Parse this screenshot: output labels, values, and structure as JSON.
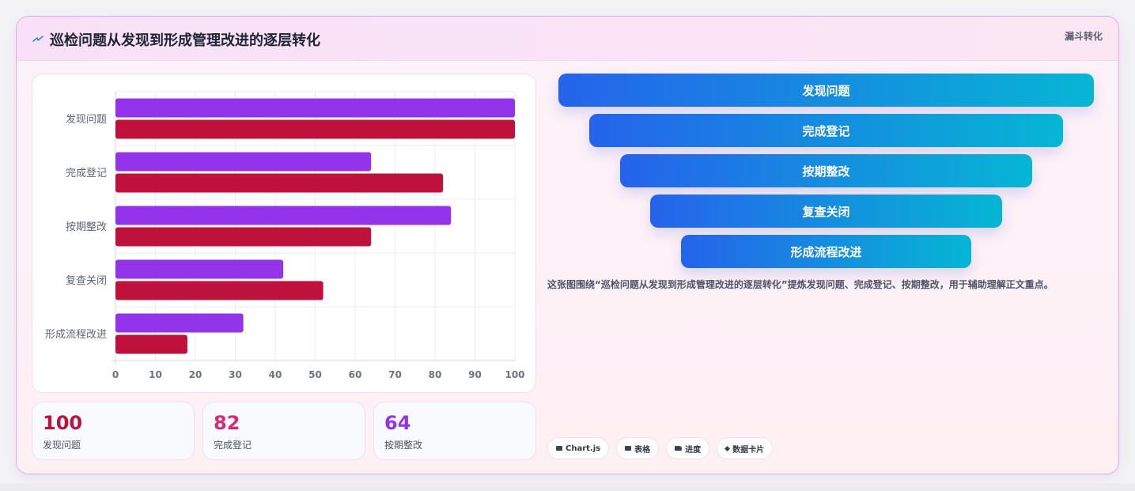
{
  "header": {
    "title": "巡检问题从发现到形成管理改进的逐层转化",
    "tag": "漏斗转化",
    "icon": "bolt-icon"
  },
  "chart_data": {
    "type": "bar",
    "orientation": "horizontal",
    "categories": [
      "发现问题",
      "完成登记",
      "按期整改",
      "复查关闭",
      "形成流程改进"
    ],
    "series": [
      {
        "color": "#9333ea",
        "values": [
          100,
          64,
          84,
          42,
          32
        ]
      },
      {
        "color": "#be123c",
        "values": [
          100,
          82,
          64,
          52,
          18
        ]
      }
    ],
    "xlim": [
      0,
      100
    ],
    "xticks": [
      0,
      10,
      20,
      30,
      40,
      50,
      60,
      70,
      80,
      90,
      100
    ],
    "grid": true,
    "legend": "none"
  },
  "stats": [
    {
      "value": "100",
      "label": "发现问题",
      "color": "#be123c"
    },
    {
      "value": "82",
      "label": "完成登记",
      "color": "#db2777"
    },
    {
      "value": "64",
      "label": "按期整改",
      "color": "#9333ea"
    }
  ],
  "funnel": {
    "stages": [
      "发现问题",
      "完成登记",
      "按期整改",
      "复查关闭",
      "形成流程改进"
    ]
  },
  "description": "这张图围绕“巡检问题从发现到形成管理改进的逐层转化”提炼发现问题、完成登记、按期整改，用于辅助理解正文重点。",
  "chips": [
    {
      "label": "Chart.js",
      "icon": "chart-icon"
    },
    {
      "label": "表格",
      "icon": "table-icon"
    },
    {
      "label": "进度",
      "icon": "folder-icon"
    },
    {
      "label": "数据卡片",
      "icon": "diamond-icon"
    }
  ]
}
